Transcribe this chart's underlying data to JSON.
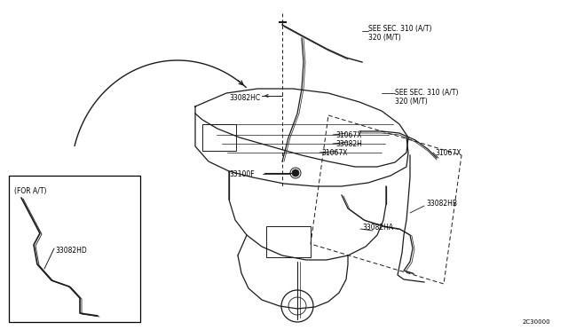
{
  "bg_color": "#ffffff",
  "line_color": "#1a1a1a",
  "diagram_code": "2C30000",
  "labels": {
    "sec310_1": "SEE SEC. 310 (A/T)\n320 (M/T)",
    "sec310_2": "SEE SEC. 310 (A/T)\n320 (M/T)",
    "33082HC": "33082HC",
    "31067X_1": "31067X",
    "33082H": "33082H",
    "31067X_2": "31067X",
    "31067X_3": "31067X",
    "33100F": "33100F",
    "33082HB": "33082HB",
    "33082HA": "33082HA",
    "for_at": "(FOR A/T)",
    "33082HD": "33082HD"
  },
  "font_size": 6.0,
  "small_font_size": 5.5
}
